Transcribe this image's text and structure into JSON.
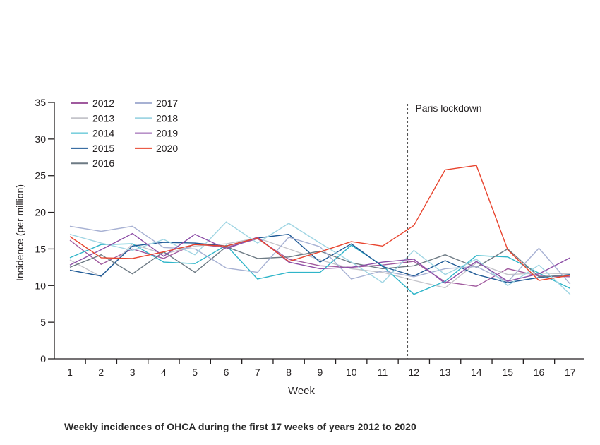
{
  "chart_data": {
    "type": "line",
    "title": "",
    "xlabel": "Week",
    "ylabel": "Incidence (per million)",
    "ylim": [
      0,
      35
    ],
    "yticks": [
      0,
      5,
      10,
      15,
      20,
      25,
      30,
      35
    ],
    "categories": [
      "1",
      "2",
      "3",
      "4",
      "5",
      "6",
      "7",
      "8",
      "9",
      "10",
      "11",
      "12",
      "13",
      "14",
      "15",
      "16",
      "17"
    ],
    "grid": false,
    "legend_position": "top-left",
    "annotation": {
      "label": "Paris lockdown",
      "week": 11.8
    },
    "series": [
      {
        "name": "2012",
        "color": "#a05a9e",
        "values": [
          16.2,
          12.9,
          15.0,
          13.7,
          15.7,
          15.2,
          16.4,
          13.6,
          12.7,
          12.5,
          12.8,
          13.3,
          10.5,
          9.9,
          12.3,
          11.3,
          11.2
        ]
      },
      {
        "name": "2013",
        "color": "#c4c4ca",
        "values": [
          13.5,
          11.2,
          15.7,
          14.3,
          15.4,
          15.7,
          16.5,
          15.0,
          13.5,
          12.3,
          11.8,
          10.7,
          9.7,
          13.1,
          11.5,
          11.7,
          11.6
        ]
      },
      {
        "name": "2014",
        "color": "#2fb5c9",
        "values": [
          13.8,
          15.6,
          15.7,
          13.2,
          13.0,
          15.5,
          10.9,
          11.8,
          11.8,
          15.5,
          12.7,
          8.8,
          10.6,
          14.1,
          13.9,
          11.7,
          9.6
        ]
      },
      {
        "name": "2015",
        "color": "#1f5a96",
        "values": [
          12.1,
          11.3,
          15.4,
          15.9,
          15.8,
          15.4,
          16.5,
          17.0,
          13.2,
          15.7,
          12.6,
          11.3,
          13.4,
          11.5,
          10.4,
          11.1,
          11.5
        ]
      },
      {
        "name": "2016",
        "color": "#6d7a84",
        "values": [
          12.5,
          14.2,
          11.6,
          14.6,
          11.8,
          15.3,
          13.7,
          13.9,
          14.7,
          13.1,
          12.3,
          12.7,
          14.2,
          12.5,
          15.0,
          11.2,
          11.4
        ]
      },
      {
        "name": "2017",
        "color": "#a7b1d3",
        "values": [
          18.1,
          17.4,
          18.1,
          15.2,
          15.0,
          12.4,
          11.8,
          16.6,
          15.3,
          10.9,
          12.0,
          11.2,
          12.3,
          12.6,
          10.5,
          15.1,
          10.2
        ]
      },
      {
        "name": "2018",
        "color": "#9fd5e3",
        "values": [
          17.0,
          15.8,
          14.8,
          16.3,
          14.2,
          18.7,
          15.8,
          18.5,
          15.8,
          13.2,
          10.4,
          14.8,
          11.5,
          13.6,
          10.0,
          12.8,
          8.8
        ]
      },
      {
        "name": "2019",
        "color": "#8d4fa7",
        "values": [
          12.8,
          14.9,
          17.1,
          14.0,
          17.0,
          15.0,
          16.6,
          13.2,
          12.3,
          12.5,
          13.2,
          13.6,
          10.3,
          13.3,
          10.6,
          11.6,
          13.8
        ]
      },
      {
        "name": "2020",
        "color": "#e8442e",
        "values": [
          16.7,
          13.8,
          13.7,
          14.6,
          15.6,
          15.4,
          16.5,
          13.3,
          14.6,
          16.0,
          15.4,
          18.2,
          25.8,
          26.4,
          14.9,
          10.7,
          11.4
        ]
      }
    ]
  },
  "caption": "Weekly incidences of OHCA during the first 17 weeks of years 2012 to 2020"
}
